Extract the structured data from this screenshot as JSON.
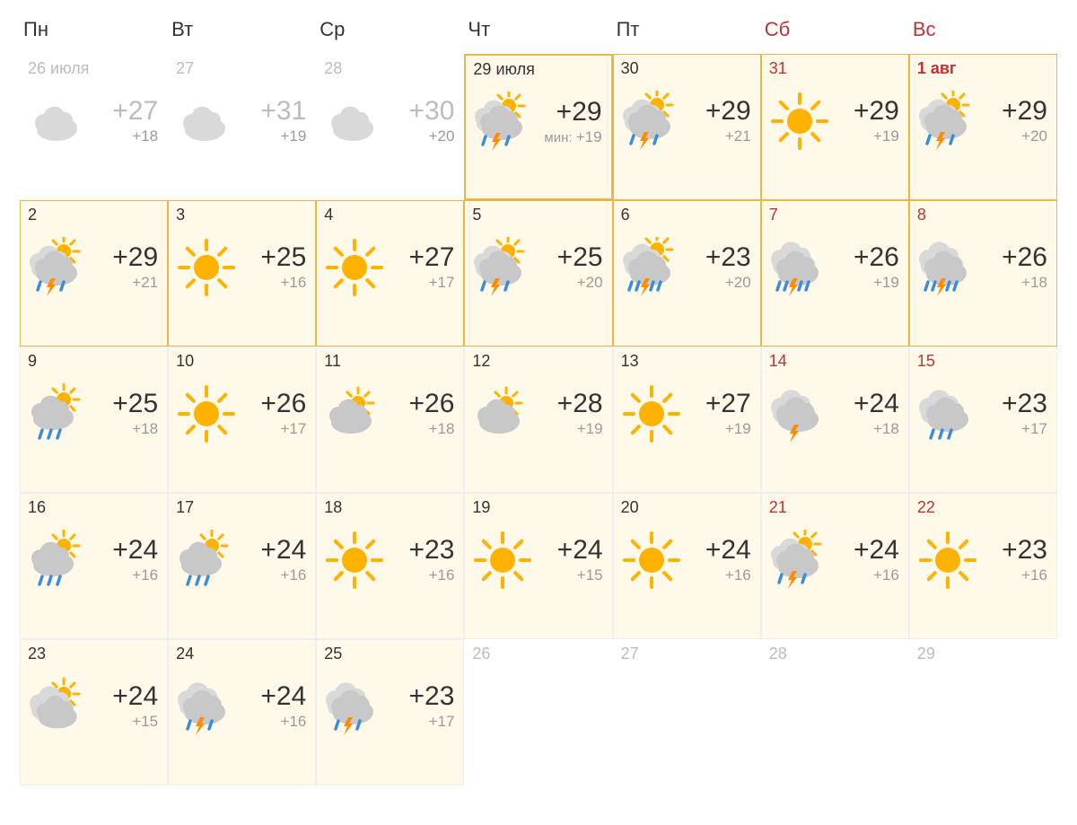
{
  "headers": [
    {
      "label": "Пн",
      "weekend": false
    },
    {
      "label": "Вт",
      "weekend": false
    },
    {
      "label": "Ср",
      "weekend": false
    },
    {
      "label": "Чт",
      "weekend": false
    },
    {
      "label": "Пт",
      "weekend": false
    },
    {
      "label": "Сб",
      "weekend": true
    },
    {
      "label": "Вс",
      "weekend": true
    }
  ],
  "colors": {
    "sun": "#ffb300",
    "sun_rays": "#ffb300",
    "cloud_gray": "#c8c8c8",
    "cloud_light": "#d9d9d9",
    "cloud_dark": "#b0b0b0",
    "cloud_past": "#d9d9d9",
    "rain": "#3a8dde",
    "lightning": "#ff8c00",
    "bg_active": "#fff9e9",
    "border_active": "#eeeeee",
    "border_hl": "#e6b84c",
    "text": "#333333",
    "text_muted": "#bcbcbc",
    "text_lo": "#9a9a9a",
    "weekend": "#c43131"
  },
  "cells": [
    {
      "date": "26 июля",
      "state": "past",
      "icon": "partly-cloudy-past",
      "hi": "+27",
      "lo": "+18"
    },
    {
      "date": "27",
      "state": "past",
      "icon": "sunny-past",
      "hi": "+31",
      "lo": "+19"
    },
    {
      "date": "28",
      "state": "past",
      "icon": "partly-cloudy-past",
      "hi": "+30",
      "lo": "+20"
    },
    {
      "date": "29 июля",
      "state": "today",
      "icon": "thunderstorm-sun",
      "hi": "+29",
      "lo": "+19",
      "lo_prefix": "мин: "
    },
    {
      "date": "30",
      "state": "hl",
      "icon": "thunderstorm-sun",
      "hi": "+29",
      "lo": "+21"
    },
    {
      "date": "31",
      "state": "hl",
      "weekend": true,
      "icon": "sunny",
      "hi": "+29",
      "lo": "+19"
    },
    {
      "date": "1 авг",
      "state": "hl",
      "weekend": true,
      "bold": true,
      "icon": "thunderstorm-sun",
      "hi": "+29",
      "lo": "+20"
    },
    {
      "date": "2",
      "state": "hl",
      "icon": "thunderstorm-sun",
      "hi": "+29",
      "lo": "+21"
    },
    {
      "date": "3",
      "state": "hl",
      "icon": "sunny",
      "hi": "+25",
      "lo": "+16"
    },
    {
      "date": "4",
      "state": "hl",
      "icon": "sunny",
      "hi": "+27",
      "lo": "+17"
    },
    {
      "date": "5",
      "state": "hl",
      "icon": "thunderstorm-sun",
      "hi": "+25",
      "lo": "+20"
    },
    {
      "date": "6",
      "state": "hl",
      "icon": "heavy-storm-sun",
      "hi": "+23",
      "lo": "+20"
    },
    {
      "date": "7",
      "state": "hl",
      "weekend": true,
      "icon": "heavy-storm",
      "hi": "+26",
      "lo": "+19"
    },
    {
      "date": "8",
      "state": "hl",
      "weekend": true,
      "icon": "heavy-storm",
      "hi": "+26",
      "lo": "+18"
    },
    {
      "date": "9",
      "state": "active",
      "icon": "rain-sun",
      "hi": "+25",
      "lo": "+18"
    },
    {
      "date": "10",
      "state": "active",
      "icon": "sunny",
      "hi": "+26",
      "lo": "+17"
    },
    {
      "date": "11",
      "state": "active",
      "icon": "partly-cloudy",
      "hi": "+26",
      "lo": "+18"
    },
    {
      "date": "12",
      "state": "active",
      "icon": "partly-cloudy",
      "hi": "+28",
      "lo": "+19"
    },
    {
      "date": "13",
      "state": "active",
      "icon": "sunny",
      "hi": "+27",
      "lo": "+19"
    },
    {
      "date": "14",
      "state": "active",
      "weekend": true,
      "icon": "thunderstorm",
      "hi": "+24",
      "lo": "+18"
    },
    {
      "date": "15",
      "state": "active",
      "weekend": true,
      "icon": "rain-cloud",
      "hi": "+23",
      "lo": "+17"
    },
    {
      "date": "16",
      "state": "active",
      "icon": "rain-sun",
      "hi": "+24",
      "lo": "+16"
    },
    {
      "date": "17",
      "state": "active",
      "icon": "rain-sun",
      "hi": "+24",
      "lo": "+16"
    },
    {
      "date": "18",
      "state": "active",
      "icon": "sunny",
      "hi": "+23",
      "lo": "+16"
    },
    {
      "date": "19",
      "state": "active",
      "icon": "sunny",
      "hi": "+24",
      "lo": "+15"
    },
    {
      "date": "20",
      "state": "active",
      "icon": "sunny",
      "hi": "+24",
      "lo": "+16"
    },
    {
      "date": "21",
      "state": "active",
      "weekend": true,
      "icon": "thunderstorm-sun",
      "hi": "+24",
      "lo": "+16"
    },
    {
      "date": "22",
      "state": "active",
      "weekend": true,
      "icon": "sunny",
      "hi": "+23",
      "lo": "+16"
    },
    {
      "date": "23",
      "state": "active",
      "icon": "cloudy-sun",
      "hi": "+24",
      "lo": "+15"
    },
    {
      "date": "24",
      "state": "active",
      "icon": "thunderstorm-cloud",
      "hi": "+24",
      "lo": "+16"
    },
    {
      "date": "25",
      "state": "active",
      "icon": "thunderstorm-cloud",
      "hi": "+23",
      "lo": "+17"
    },
    {
      "date": "26",
      "state": "future-empty"
    },
    {
      "date": "27",
      "state": "future-empty"
    },
    {
      "date": "28",
      "state": "future-empty"
    },
    {
      "date": "29",
      "state": "future-empty"
    }
  ]
}
